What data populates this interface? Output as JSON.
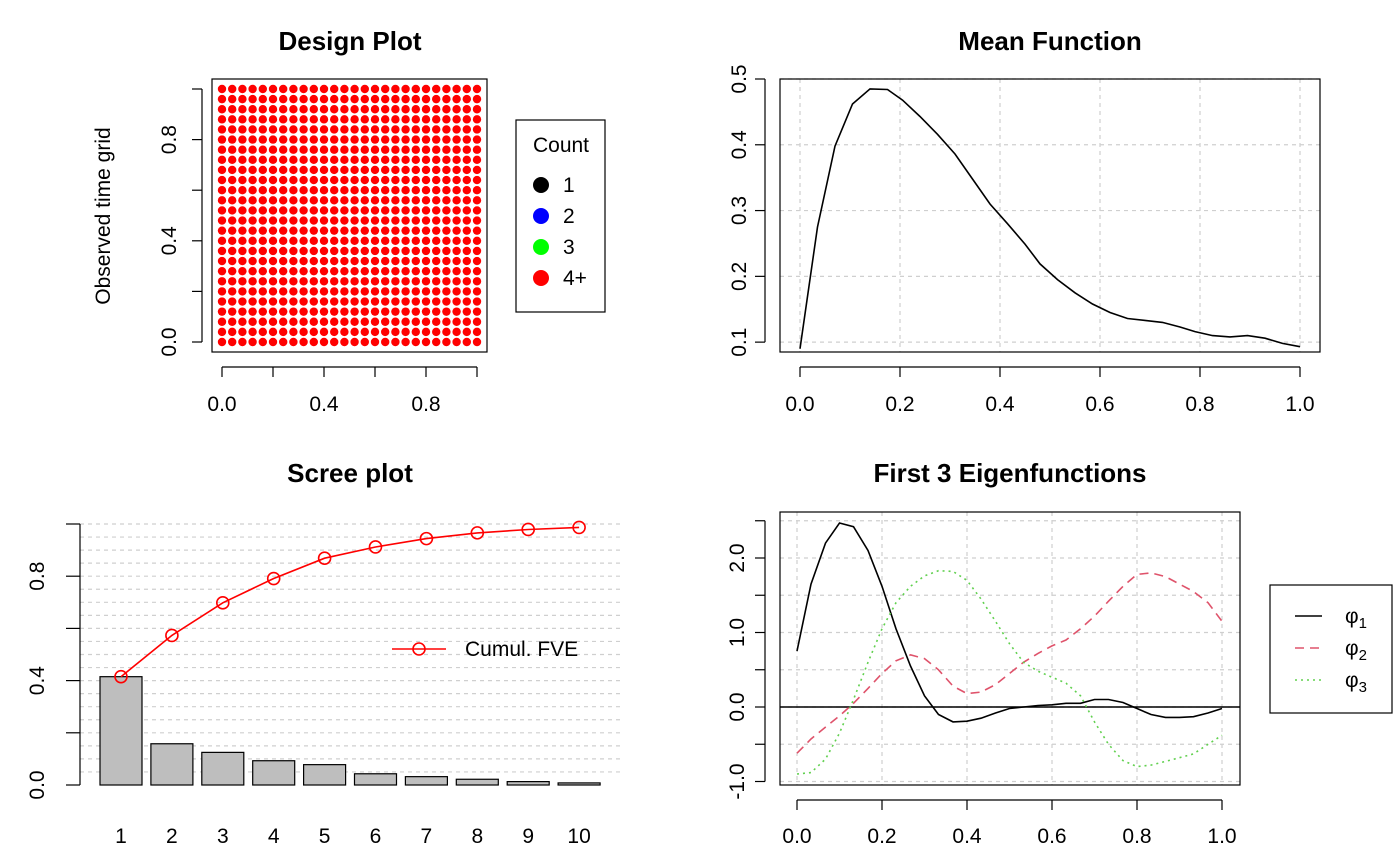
{
  "chart_data": [
    {
      "type": "scatter",
      "title": "Design Plot",
      "xlabel": "",
      "ylabel": "Observed time grid",
      "xlim": [
        0,
        1
      ],
      "ylim": [
        0,
        1
      ],
      "x_ticks": [
        "0.0",
        "0.4",
        "0.8"
      ],
      "y_ticks": [
        "0.0",
        "0.4",
        "0.8"
      ],
      "grid": false,
      "grid_points": 26,
      "point_color": "#ff0000",
      "legend": {
        "title": "Count",
        "placement": "right",
        "entries": [
          {
            "label": "1",
            "color": "#000000"
          },
          {
            "label": "2",
            "color": "#0000ff"
          },
          {
            "label": "3",
            "color": "#00ff00"
          },
          {
            "label": "4+",
            "color": "#ff0000"
          }
        ]
      }
    },
    {
      "type": "line",
      "title": "Mean Function",
      "xlim": [
        0,
        1
      ],
      "ylim": [
        0.085,
        0.5
      ],
      "x_ticks": [
        "0.0",
        "0.2",
        "0.4",
        "0.6",
        "0.8",
        "1.0"
      ],
      "y_ticks": [
        "0.1",
        "0.2",
        "0.3",
        "0.4",
        "0.5"
      ],
      "grid": true,
      "series": [
        {
          "color": "#000000",
          "points": [
            [
              0,
              0.09
            ],
            [
              0.035,
              0.275
            ],
            [
              0.07,
              0.398
            ],
            [
              0.105,
              0.462
            ],
            [
              0.14,
              0.485
            ],
            [
              0.175,
              0.484
            ],
            [
              0.205,
              0.468
            ],
            [
              0.24,
              0.443
            ],
            [
              0.275,
              0.416
            ],
            [
              0.31,
              0.386
            ],
            [
              0.345,
              0.348
            ],
            [
              0.38,
              0.31
            ],
            [
              0.415,
              0.28
            ],
            [
              0.45,
              0.249
            ],
            [
              0.48,
              0.219
            ],
            [
              0.515,
              0.195
            ],
            [
              0.55,
              0.175
            ],
            [
              0.585,
              0.158
            ],
            [
              0.62,
              0.145
            ],
            [
              0.655,
              0.136
            ],
            [
              0.69,
              0.133
            ],
            [
              0.725,
              0.13
            ],
            [
              0.76,
              0.123
            ],
            [
              0.79,
              0.116
            ],
            [
              0.825,
              0.11
            ],
            [
              0.86,
              0.108
            ],
            [
              0.895,
              0.11
            ],
            [
              0.93,
              0.106
            ],
            [
              0.965,
              0.098
            ],
            [
              1.0,
              0.093
            ]
          ]
        }
      ]
    },
    {
      "type": "bar",
      "title": "Scree plot",
      "categories": [
        "1",
        "2",
        "3",
        "4",
        "5",
        "6",
        "7",
        "8",
        "9",
        "10"
      ],
      "values": [
        0.415,
        0.158,
        0.125,
        0.093,
        0.078,
        0.043,
        0.032,
        0.022,
        0.013,
        0.008
      ],
      "ylim": [
        0,
        1
      ],
      "y_ticks": [
        "0.0",
        "0.4",
        "0.8"
      ],
      "grid": true,
      "bar_color": "#bebebe",
      "series": [
        {
          "name": "Cumul. FVE",
          "color": "#ff0000",
          "values": [
            0.415,
            0.573,
            0.698,
            0.791,
            0.869,
            0.912,
            0.944,
            0.966,
            0.979,
            0.987
          ]
        }
      ],
      "legend_placement": "right"
    },
    {
      "type": "line",
      "title": "First 3 Eigenfunctions",
      "xlim": [
        0,
        1
      ],
      "ylim": [
        -1.0,
        2.5
      ],
      "x_ticks": [
        "0.0",
        "0.2",
        "0.4",
        "0.6",
        "0.8",
        "1.0"
      ],
      "y_ticks": [
        "-1.0",
        "0.0",
        "1.0",
        "2.0"
      ],
      "grid": true,
      "zero_line": true,
      "legend_placement": "right",
      "series": [
        {
          "name": "φ1",
          "color": "#000000",
          "dash": "solid",
          "points": [
            [
              0,
              0.75
            ],
            [
              0.033,
              1.65
            ],
            [
              0.067,
              2.2
            ],
            [
              0.1,
              2.47
            ],
            [
              0.133,
              2.42
            ],
            [
              0.167,
              2.1
            ],
            [
              0.2,
              1.62
            ],
            [
              0.233,
              1.05
            ],
            [
              0.267,
              0.55
            ],
            [
              0.3,
              0.15
            ],
            [
              0.333,
              -0.1
            ],
            [
              0.367,
              -0.2
            ],
            [
              0.4,
              -0.19
            ],
            [
              0.433,
              -0.15
            ],
            [
              0.467,
              -0.08
            ],
            [
              0.5,
              -0.02
            ],
            [
              0.533,
              0.0
            ],
            [
              0.567,
              0.02
            ],
            [
              0.6,
              0.03
            ],
            [
              0.633,
              0.05
            ],
            [
              0.667,
              0.05
            ],
            [
              0.7,
              0.1
            ],
            [
              0.733,
              0.1
            ],
            [
              0.767,
              0.06
            ],
            [
              0.8,
              -0.02
            ],
            [
              0.833,
              -0.1
            ],
            [
              0.867,
              -0.14
            ],
            [
              0.9,
              -0.14
            ],
            [
              0.933,
              -0.13
            ],
            [
              0.967,
              -0.08
            ],
            [
              1.0,
              -0.02
            ]
          ]
        },
        {
          "name": "φ2",
          "color": "#df536b",
          "dash": "dashed",
          "points": [
            [
              0,
              -0.62
            ],
            [
              0.033,
              -0.43
            ],
            [
              0.067,
              -0.27
            ],
            [
              0.1,
              -0.12
            ],
            [
              0.133,
              0.05
            ],
            [
              0.167,
              0.25
            ],
            [
              0.2,
              0.45
            ],
            [
              0.233,
              0.62
            ],
            [
              0.267,
              0.7
            ],
            [
              0.3,
              0.65
            ],
            [
              0.333,
              0.5
            ],
            [
              0.367,
              0.28
            ],
            [
              0.4,
              0.18
            ],
            [
              0.433,
              0.2
            ],
            [
              0.467,
              0.3
            ],
            [
              0.5,
              0.45
            ],
            [
              0.533,
              0.6
            ],
            [
              0.567,
              0.72
            ],
            [
              0.6,
              0.82
            ],
            [
              0.633,
              0.9
            ],
            [
              0.667,
              1.05
            ],
            [
              0.7,
              1.22
            ],
            [
              0.733,
              1.42
            ],
            [
              0.767,
              1.62
            ],
            [
              0.8,
              1.78
            ],
            [
              0.833,
              1.8
            ],
            [
              0.867,
              1.75
            ],
            [
              0.9,
              1.65
            ],
            [
              0.933,
              1.55
            ],
            [
              0.967,
              1.4
            ],
            [
              1.0,
              1.15
            ]
          ]
        },
        {
          "name": "φ3",
          "color": "#61d04f",
          "dash": "dotted",
          "points": [
            [
              0,
              -0.9
            ],
            [
              0.033,
              -0.88
            ],
            [
              0.067,
              -0.7
            ],
            [
              0.1,
              -0.35
            ],
            [
              0.133,
              0.1
            ],
            [
              0.167,
              0.6
            ],
            [
              0.2,
              1.05
            ],
            [
              0.233,
              1.4
            ],
            [
              0.267,
              1.62
            ],
            [
              0.3,
              1.76
            ],
            [
              0.333,
              1.83
            ],
            [
              0.367,
              1.82
            ],
            [
              0.4,
              1.7
            ],
            [
              0.433,
              1.45
            ],
            [
              0.467,
              1.15
            ],
            [
              0.5,
              0.85
            ],
            [
              0.533,
              0.6
            ],
            [
              0.567,
              0.48
            ],
            [
              0.6,
              0.4
            ],
            [
              0.633,
              0.32
            ],
            [
              0.667,
              0.15
            ],
            [
              0.7,
              -0.2
            ],
            [
              0.733,
              -0.5
            ],
            [
              0.767,
              -0.72
            ],
            [
              0.8,
              -0.8
            ],
            [
              0.833,
              -0.78
            ],
            [
              0.867,
              -0.73
            ],
            [
              0.9,
              -0.68
            ],
            [
              0.933,
              -0.63
            ],
            [
              0.967,
              -0.5
            ],
            [
              1.0,
              -0.38
            ]
          ]
        }
      ]
    }
  ]
}
